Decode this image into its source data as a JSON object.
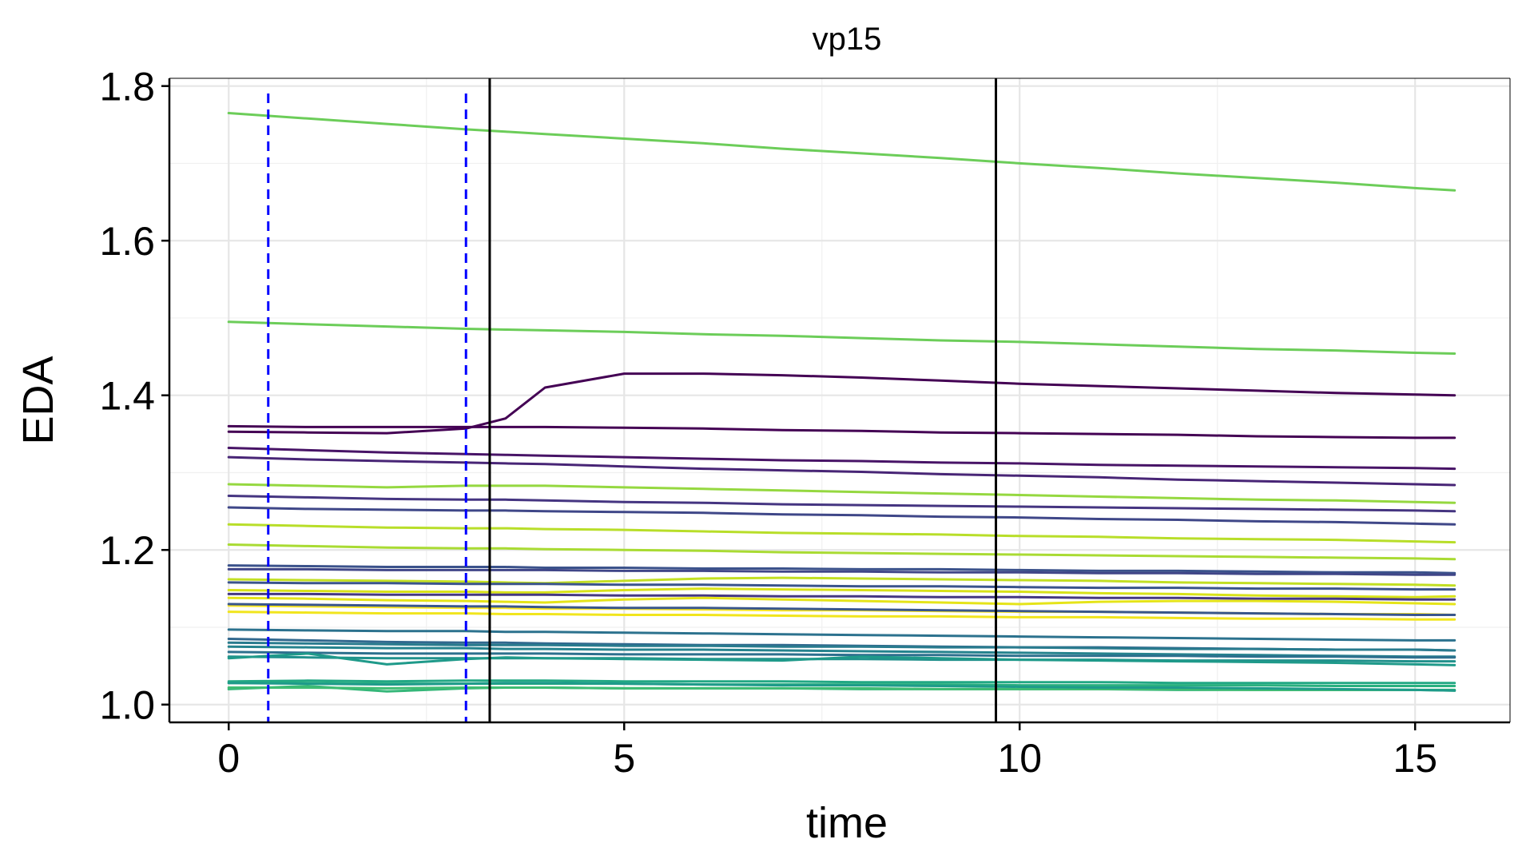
{
  "chart_data": {
    "type": "line",
    "title": "vp15",
    "xlabel": "time",
    "ylabel": "EDA",
    "xlim": [
      -0.75,
      16.2
    ],
    "ylim": [
      0.977,
      1.81
    ],
    "xticks": [
      "0",
      "5",
      "10",
      "15"
    ],
    "yticks": [
      "1.0",
      "1.2",
      "1.4",
      "1.6",
      "1.8"
    ],
    "grid": true,
    "legend": "none",
    "vlines_dashed": {
      "x": [
        0.5,
        3.0
      ],
      "color": "#0000ff"
    },
    "vlines_solid": {
      "x": [
        3.3,
        9.7
      ],
      "color": "#000000"
    },
    "x": [
      0,
      1,
      2,
      3,
      3.5,
      4,
      5,
      6,
      7,
      8,
      9,
      10,
      11,
      12,
      13,
      14,
      15,
      15.5
    ],
    "series": [
      {
        "color": "#6ccd59",
        "values": [
          1.765,
          1.758,
          1.751,
          1.744,
          1.741,
          1.738,
          1.732,
          1.726,
          1.719,
          1.713,
          1.707,
          1.7,
          1.694,
          1.687,
          1.681,
          1.675,
          1.668,
          1.665
        ]
      },
      {
        "color": "#6ccd59",
        "values": [
          1.495,
          1.492,
          1.489,
          1.486,
          1.485,
          1.484,
          1.482,
          1.479,
          1.477,
          1.474,
          1.471,
          1.469,
          1.466,
          1.463,
          1.46,
          1.458,
          1.455,
          1.454
        ]
      },
      {
        "color": "#440154",
        "values": [
          1.353,
          1.352,
          1.351,
          1.357,
          1.37,
          1.41,
          1.428,
          1.428,
          1.426,
          1.423,
          1.419,
          1.415,
          1.412,
          1.409,
          1.406,
          1.403,
          1.401,
          1.4
        ]
      },
      {
        "color": "#440154",
        "values": [
          1.36,
          1.359,
          1.359,
          1.359,
          1.359,
          1.359,
          1.358,
          1.357,
          1.355,
          1.354,
          1.352,
          1.351,
          1.35,
          1.349,
          1.347,
          1.346,
          1.345,
          1.345
        ]
      },
      {
        "color": "#481467",
        "values": [
          1.332,
          1.329,
          1.326,
          1.324,
          1.323,
          1.322,
          1.32,
          1.318,
          1.316,
          1.315,
          1.313,
          1.312,
          1.31,
          1.309,
          1.308,
          1.307,
          1.306,
          1.305
        ]
      },
      {
        "color": "#482576",
        "values": [
          1.32,
          1.317,
          1.315,
          1.313,
          1.312,
          1.311,
          1.308,
          1.305,
          1.303,
          1.301,
          1.298,
          1.296,
          1.294,
          1.291,
          1.289,
          1.287,
          1.285,
          1.284
        ]
      },
      {
        "color": "#95d840",
        "values": [
          1.285,
          1.283,
          1.281,
          1.283,
          1.283,
          1.283,
          1.281,
          1.279,
          1.277,
          1.275,
          1.273,
          1.271,
          1.269,
          1.267,
          1.265,
          1.264,
          1.262,
          1.261
        ]
      },
      {
        "color": "#453581",
        "values": [
          1.27,
          1.268,
          1.266,
          1.265,
          1.265,
          1.264,
          1.262,
          1.261,
          1.259,
          1.258,
          1.257,
          1.256,
          1.255,
          1.254,
          1.253,
          1.252,
          1.251,
          1.25
        ]
      },
      {
        "color": "#3f4788",
        "values": [
          1.255,
          1.253,
          1.252,
          1.251,
          1.251,
          1.25,
          1.249,
          1.248,
          1.246,
          1.245,
          1.243,
          1.242,
          1.24,
          1.239,
          1.237,
          1.236,
          1.234,
          1.233
        ]
      },
      {
        "color": "#b8de29",
        "values": [
          1.233,
          1.231,
          1.229,
          1.228,
          1.228,
          1.227,
          1.226,
          1.224,
          1.222,
          1.221,
          1.22,
          1.218,
          1.217,
          1.215,
          1.214,
          1.213,
          1.211,
          1.21
        ]
      },
      {
        "color": "#a9db33",
        "values": [
          1.207,
          1.205,
          1.203,
          1.202,
          1.202,
          1.201,
          1.2,
          1.199,
          1.197,
          1.196,
          1.195,
          1.194,
          1.193,
          1.192,
          1.191,
          1.19,
          1.189,
          1.188
        ]
      },
      {
        "color": "#3b528b",
        "values": [
          1.18,
          1.179,
          1.178,
          1.178,
          1.178,
          1.177,
          1.177,
          1.176,
          1.176,
          1.175,
          1.175,
          1.174,
          1.173,
          1.173,
          1.172,
          1.171,
          1.171,
          1.17
        ]
      },
      {
        "color": "#404688",
        "values": [
          1.175,
          1.175,
          1.174,
          1.174,
          1.174,
          1.174,
          1.173,
          1.173,
          1.172,
          1.172,
          1.171,
          1.171,
          1.17,
          1.17,
          1.169,
          1.169,
          1.168,
          1.168
        ]
      },
      {
        "color": "#c2df23",
        "values": [
          1.162,
          1.161,
          1.16,
          1.159,
          1.158,
          1.157,
          1.16,
          1.163,
          1.164,
          1.163,
          1.162,
          1.161,
          1.16,
          1.158,
          1.157,
          1.156,
          1.155,
          1.154
        ]
      },
      {
        "color": "#3a548c",
        "values": [
          1.158,
          1.157,
          1.157,
          1.156,
          1.156,
          1.156,
          1.155,
          1.155,
          1.154,
          1.153,
          1.153,
          1.152,
          1.151,
          1.151,
          1.15,
          1.15,
          1.149,
          1.149
        ]
      },
      {
        "color": "#d8e219",
        "values": [
          1.148,
          1.147,
          1.146,
          1.146,
          1.145,
          1.145,
          1.148,
          1.15,
          1.149,
          1.148,
          1.147,
          1.146,
          1.144,
          1.143,
          1.141,
          1.14,
          1.139,
          1.14
        ]
      },
      {
        "color": "#453882",
        "values": [
          1.143,
          1.143,
          1.142,
          1.142,
          1.142,
          1.142,
          1.141,
          1.141,
          1.14,
          1.14,
          1.139,
          1.139,
          1.138,
          1.138,
          1.137,
          1.137,
          1.136,
          1.136
        ]
      },
      {
        "color": "#e5e419",
        "values": [
          1.138,
          1.137,
          1.135,
          1.134,
          1.133,
          1.132,
          1.136,
          1.138,
          1.136,
          1.134,
          1.132,
          1.13,
          1.133,
          1.134,
          1.134,
          1.133,
          1.131,
          1.13
        ]
      },
      {
        "color": "#fde725",
        "values": [
          1.128,
          1.127,
          1.126,
          1.125,
          1.125,
          1.124,
          1.124,
          1.123,
          1.122,
          1.122,
          1.121,
          1.12,
          1.12,
          1.119,
          1.118,
          1.117,
          1.117,
          1.116
        ]
      },
      {
        "color": "#f1e51d",
        "values": [
          1.12,
          1.119,
          1.118,
          1.118,
          1.117,
          1.117,
          1.116,
          1.116,
          1.115,
          1.114,
          1.114,
          1.113,
          1.113,
          1.112,
          1.111,
          1.111,
          1.11,
          1.11
        ]
      },
      {
        "color": "#39568c",
        "values": [
          1.13,
          1.129,
          1.128,
          1.127,
          1.127,
          1.126,
          1.125,
          1.125,
          1.124,
          1.123,
          1.122,
          1.121,
          1.12,
          1.119,
          1.118,
          1.117,
          1.116,
          1.116
        ]
      },
      {
        "color": "#2c728e",
        "values": [
          1.097,
          1.096,
          1.095,
          1.095,
          1.094,
          1.094,
          1.093,
          1.092,
          1.091,
          1.09,
          1.089,
          1.088,
          1.087,
          1.086,
          1.085,
          1.084,
          1.083,
          1.083
        ]
      },
      {
        "color": "#31688e",
        "values": [
          1.085,
          1.083,
          1.081,
          1.08,
          1.08,
          1.079,
          1.078,
          1.077,
          1.077,
          1.076,
          1.075,
          1.074,
          1.074,
          1.073,
          1.072,
          1.071,
          1.071,
          1.07
        ]
      },
      {
        "color": "#297b8e",
        "values": [
          1.08,
          1.079,
          1.078,
          1.077,
          1.077,
          1.077,
          1.076,
          1.076,
          1.075,
          1.075,
          1.074,
          1.074,
          1.073,
          1.072,
          1.072,
          1.071,
          1.071,
          1.07
        ]
      },
      {
        "color": "#25838e",
        "values": [
          1.075,
          1.074,
          1.073,
          1.073,
          1.072,
          1.072,
          1.071,
          1.071,
          1.07,
          1.069,
          1.068,
          1.067,
          1.066,
          1.065,
          1.064,
          1.063,
          1.062,
          1.062
        ]
      },
      {
        "color": "#2d708e",
        "values": [
          1.068,
          1.067,
          1.066,
          1.066,
          1.066,
          1.066,
          1.065,
          1.065,
          1.065,
          1.064,
          1.064,
          1.063,
          1.063,
          1.063,
          1.062,
          1.062,
          1.061,
          1.061
        ]
      },
      {
        "color": "#21918c",
        "values": [
          1.062,
          1.061,
          1.06,
          1.06,
          1.06,
          1.06,
          1.06,
          1.059,
          1.059,
          1.059,
          1.058,
          1.058,
          1.058,
          1.057,
          1.057,
          1.057,
          1.056,
          1.056
        ]
      },
      {
        "color": "#1f9a8a",
        "values": [
          1.06,
          1.066,
          1.052,
          1.059,
          1.061,
          1.06,
          1.059,
          1.058,
          1.057,
          1.062,
          1.06,
          1.058,
          1.057,
          1.056,
          1.055,
          1.054,
          1.052,
          1.051
        ]
      },
      {
        "color": "#22a884",
        "values": [
          1.03,
          1.031,
          1.03,
          1.031,
          1.031,
          1.031,
          1.03,
          1.03,
          1.03,
          1.029,
          1.029,
          1.029,
          1.029,
          1.028,
          1.028,
          1.028,
          1.028,
          1.028
        ]
      },
      {
        "color": "#2ab07f",
        "values": [
          1.028,
          1.028,
          1.027,
          1.027,
          1.027,
          1.027,
          1.027,
          1.026,
          1.026,
          1.026,
          1.026,
          1.025,
          1.025,
          1.025,
          1.025,
          1.024,
          1.024,
          1.024
        ]
      },
      {
        "color": "#35b779",
        "values": [
          1.02,
          1.024,
          1.017,
          1.021,
          1.022,
          1.022,
          1.021,
          1.021,
          1.021,
          1.02,
          1.02,
          1.02,
          1.02,
          1.019,
          1.019,
          1.019,
          1.019,
          1.019
        ]
      },
      {
        "color": "#3fbc73",
        "values": [
          1.022,
          1.022,
          1.021,
          1.022,
          1.022,
          1.022,
          1.021,
          1.021,
          1.021,
          1.021,
          1.02,
          1.02,
          1.02,
          1.02,
          1.019,
          1.019,
          1.019,
          1.018
        ]
      },
      {
        "color": "#1e9b8a",
        "values": [
          1.028,
          1.027,
          1.026,
          1.027,
          1.028,
          1.028,
          1.027,
          1.026,
          1.025,
          1.025,
          1.024,
          1.023,
          1.022,
          1.022,
          1.021,
          1.02,
          1.019,
          1.018
        ]
      }
    ]
  }
}
